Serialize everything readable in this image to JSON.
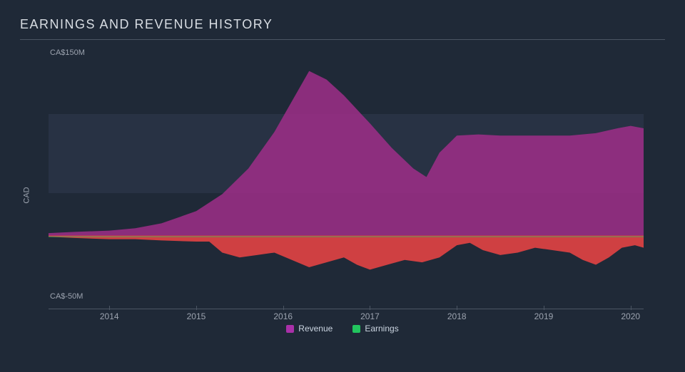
{
  "chart": {
    "type": "area",
    "title": "EARNINGS AND REVENUE HISTORY",
    "title_fontsize": 18,
    "title_color": "#d8dde3",
    "background_color": "#1f2937",
    "band_color": "#283244",
    "axis_line_color": "#4b5563",
    "label_color": "#9ca3af",
    "legend_text_color": "#cbd5e1",
    "ylabel": "CAD",
    "ylim": [
      -50,
      150
    ],
    "ytick_labels": {
      "top": "CA$150M",
      "bottom": "CA$-50M"
    },
    "baseline_value": 0,
    "band_top_value": 100,
    "band_bottom_value": 35,
    "x_years": [
      2014,
      2015,
      2016,
      2017,
      2018,
      2019,
      2020
    ],
    "x_domain": [
      2013.3,
      2020.15
    ],
    "series": {
      "revenue": {
        "label": "Revenue",
        "fill_color": "#9b2d86",
        "fill_opacity": 0.88,
        "points": [
          [
            2013.3,
            2
          ],
          [
            2013.6,
            3
          ],
          [
            2014.0,
            4
          ],
          [
            2014.3,
            6
          ],
          [
            2014.6,
            10
          ],
          [
            2015.0,
            20
          ],
          [
            2015.3,
            34
          ],
          [
            2015.6,
            55
          ],
          [
            2015.9,
            85
          ],
          [
            2016.1,
            110
          ],
          [
            2016.3,
            135
          ],
          [
            2016.5,
            128
          ],
          [
            2016.7,
            115
          ],
          [
            2017.0,
            92
          ],
          [
            2017.25,
            72
          ],
          [
            2017.5,
            55
          ],
          [
            2017.65,
            48
          ],
          [
            2017.8,
            68
          ],
          [
            2018.0,
            82
          ],
          [
            2018.25,
            83
          ],
          [
            2018.5,
            82
          ],
          [
            2019.0,
            82
          ],
          [
            2019.3,
            82
          ],
          [
            2019.6,
            84
          ],
          [
            2019.85,
            88
          ],
          [
            2020.0,
            90
          ],
          [
            2020.15,
            88
          ]
        ]
      },
      "earnings": {
        "label": "Earnings",
        "fill_color_positive": "#22c55e",
        "fill_color_negative": "#ef4444",
        "fill_opacity": 0.85,
        "line_color": "#22c55e",
        "points": [
          [
            2013.3,
            -1
          ],
          [
            2013.6,
            -2
          ],
          [
            2014.0,
            -3
          ],
          [
            2014.3,
            -3
          ],
          [
            2014.6,
            -4
          ],
          [
            2015.0,
            -5
          ],
          [
            2015.15,
            -5
          ],
          [
            2015.3,
            -14
          ],
          [
            2015.5,
            -18
          ],
          [
            2015.7,
            -16
          ],
          [
            2015.9,
            -14
          ],
          [
            2016.1,
            -20
          ],
          [
            2016.3,
            -26
          ],
          [
            2016.5,
            -22
          ],
          [
            2016.7,
            -18
          ],
          [
            2016.85,
            -24
          ],
          [
            2017.0,
            -28
          ],
          [
            2017.2,
            -24
          ],
          [
            2017.4,
            -20
          ],
          [
            2017.6,
            -22
          ],
          [
            2017.8,
            -18
          ],
          [
            2018.0,
            -8
          ],
          [
            2018.15,
            -6
          ],
          [
            2018.3,
            -12
          ],
          [
            2018.5,
            -16
          ],
          [
            2018.7,
            -14
          ],
          [
            2018.9,
            -10
          ],
          [
            2019.1,
            -12
          ],
          [
            2019.3,
            -14
          ],
          [
            2019.45,
            -20
          ],
          [
            2019.6,
            -24
          ],
          [
            2019.75,
            -18
          ],
          [
            2019.9,
            -10
          ],
          [
            2020.05,
            -8
          ],
          [
            2020.15,
            -10
          ]
        ]
      }
    },
    "legend": [
      {
        "label": "Revenue",
        "color": "#a930a9"
      },
      {
        "label": "Earnings",
        "color": "#22c55e"
      }
    ]
  }
}
